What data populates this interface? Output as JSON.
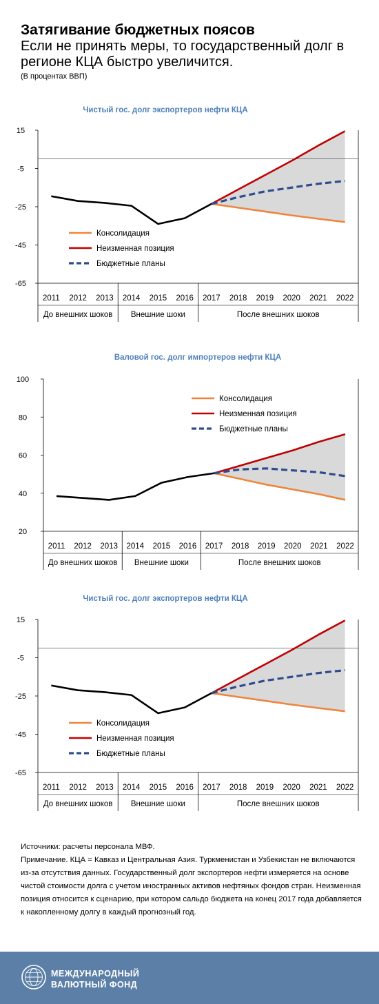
{
  "header": {
    "title": "Затягивание бюджетных поясов",
    "subtitle": "Если не принять меры, то государственный долг в регионе КЦА быстро увеличится.",
    "unit": "(В процентах ВВП)"
  },
  "colors": {
    "consolidation": "#f0843a",
    "unchanged": "#c00000",
    "budget": "#2f4b8f",
    "history": "#000000",
    "shading": "#d9d9d9",
    "chart_title": "#4f81bd",
    "footer": "#5b7fa6"
  },
  "chart_data": [
    {
      "type": "line",
      "title": "Чистый гос. долг экспортеров нефти КЦА",
      "categories": [
        "2011",
        "2012",
        "2013",
        "2014",
        "2015",
        "2016",
        "2017",
        "2018",
        "2019",
        "2020",
        "2021",
        "2022"
      ],
      "ylim": [
        -65,
        15
      ],
      "yticks": [
        "15",
        "-5",
        "-25",
        "-45",
        "-65"
      ],
      "reference_line": 0,
      "shaded_area": "between Консолидация and Неизменная позиция, 2017–2022",
      "period_groups": [
        {
          "label": "До внешних шоков",
          "from": "2011",
          "to": "2013"
        },
        {
          "label": "Внешние шоки",
          "from": "2014",
          "to": "2016"
        },
        {
          "label": "После внешних шоков",
          "from": "2017",
          "to": "2022"
        }
      ],
      "history": [
        -19.5,
        -22,
        -23,
        -24.5,
        -34,
        -31,
        -23.5
      ],
      "legend_position": "bottom-left",
      "series": [
        {
          "name": "Консолидация",
          "style": "solid",
          "color": "#f0843a",
          "values": [
            null,
            null,
            null,
            null,
            null,
            null,
            -23.5,
            -25.5,
            -27.5,
            -29.5,
            -31.3,
            -33
          ]
        },
        {
          "name": "Неизменная позиция",
          "style": "solid",
          "color": "#c00000",
          "values": [
            null,
            null,
            null,
            null,
            null,
            null,
            -23.5,
            -16,
            -8.5,
            -1,
            7,
            14.5
          ]
        },
        {
          "name": "Бюджетные планы",
          "style": "dashed",
          "color": "#2f4b8f",
          "values": [
            null,
            null,
            null,
            null,
            null,
            null,
            -23.5,
            -20,
            -17,
            -15,
            -13,
            -11.5
          ]
        }
      ]
    },
    {
      "type": "line",
      "title": "Валовой гос. долг импортеров нефти КЦА",
      "categories": [
        "2011",
        "2012",
        "2013",
        "2014",
        "2015",
        "2016",
        "2017",
        "2018",
        "2019",
        "2020",
        "2021",
        "2022"
      ],
      "ylim": [
        20,
        100
      ],
      "yticks": [
        "100",
        "80",
        "60",
        "40",
        "20"
      ],
      "reference_line": null,
      "shaded_area": "between Консолидация and Неизменная позиция, 2017–2022",
      "period_groups": [
        {
          "label": "До внешних шоков",
          "from": "2011",
          "to": "2013"
        },
        {
          "label": "Внешние шоки",
          "from": "2014",
          "to": "2016"
        },
        {
          "label": "После внешних шоков",
          "from": "2017",
          "to": "2022"
        }
      ],
      "history": [
        38.5,
        37.5,
        36.5,
        38.5,
        45.5,
        48.5,
        50.5
      ],
      "legend_position": "top-right",
      "series": [
        {
          "name": "Консолидация",
          "style": "solid",
          "color": "#f0843a",
          "values": [
            null,
            null,
            null,
            null,
            null,
            null,
            50.5,
            47.5,
            44.5,
            42,
            39.5,
            36.5
          ]
        },
        {
          "name": "Неизменная позиция",
          "style": "solid",
          "color": "#c00000",
          "values": [
            null,
            null,
            null,
            null,
            null,
            null,
            50.5,
            54.5,
            58.5,
            62.5,
            67,
            71
          ]
        },
        {
          "name": "Бюджетные планы",
          "style": "dashed",
          "color": "#2f4b8f",
          "values": [
            null,
            null,
            null,
            null,
            null,
            null,
            50.5,
            52.5,
            53,
            52,
            51,
            49
          ]
        }
      ]
    },
    {
      "type": "line",
      "title": "Чистый гос. долг экспортеров нефти КЦА",
      "categories": [
        "2011",
        "2012",
        "2013",
        "2014",
        "2015",
        "2016",
        "2017",
        "2018",
        "2019",
        "2020",
        "2021",
        "2022"
      ],
      "ylim": [
        -65,
        15
      ],
      "yticks": [
        "15",
        "-5",
        "-25",
        "-45",
        "-65"
      ],
      "reference_line": 0,
      "shaded_area": "between Консолидация and Неизменная позиция, 2017–2022",
      "period_groups": [
        {
          "label": "До внешних шоков",
          "from": "2011",
          "to": "2013"
        },
        {
          "label": "Внешние шоки",
          "from": "2014",
          "to": "2016"
        },
        {
          "label": "После внешних шоков",
          "from": "2017",
          "to": "2022"
        }
      ],
      "history": [
        -19.5,
        -22,
        -23,
        -24.5,
        -34,
        -31,
        -23.5
      ],
      "legend_position": "bottom-left",
      "series": [
        {
          "name": "Консолидация",
          "style": "solid",
          "color": "#f0843a",
          "values": [
            null,
            null,
            null,
            null,
            null,
            null,
            -23.5,
            -25.5,
            -27.5,
            -29.5,
            -31.3,
            -33
          ]
        },
        {
          "name": "Неизменная позиция",
          "style": "solid",
          "color": "#c00000",
          "values": [
            null,
            null,
            null,
            null,
            null,
            null,
            -23.5,
            -16,
            -8.5,
            -1,
            7,
            14.5
          ]
        },
        {
          "name": "Бюджетные планы",
          "style": "dashed",
          "color": "#2f4b8f",
          "values": [
            null,
            null,
            null,
            null,
            null,
            null,
            -23.5,
            -20,
            -17,
            -15,
            -13,
            -11.5
          ]
        }
      ]
    }
  ],
  "notes": {
    "sources": "Источники: расчеты персонала МВФ.",
    "note": "Примечание. КЦА = Кавказ и Центральная Азия. Туркменистан и Узбекистан не включаются из-за отсутствия данных. Государственный долг экспортеров нефти измеряется на основе чистой стоимости долга с учетом иностранных активов нефтяных фондов стран. Неизменная позиция относится к сценарию, при котором сальдо бюджета на конец 2017 года добавляется к накопленному долгу в каждый прогнозный год."
  },
  "footer": {
    "org_line1": "МЕЖДУНАРОДНЫЙ",
    "org_line2": "ВАЛЮТНЫЙ ФОНД",
    "logo_icon": "imf-seal-icon"
  }
}
